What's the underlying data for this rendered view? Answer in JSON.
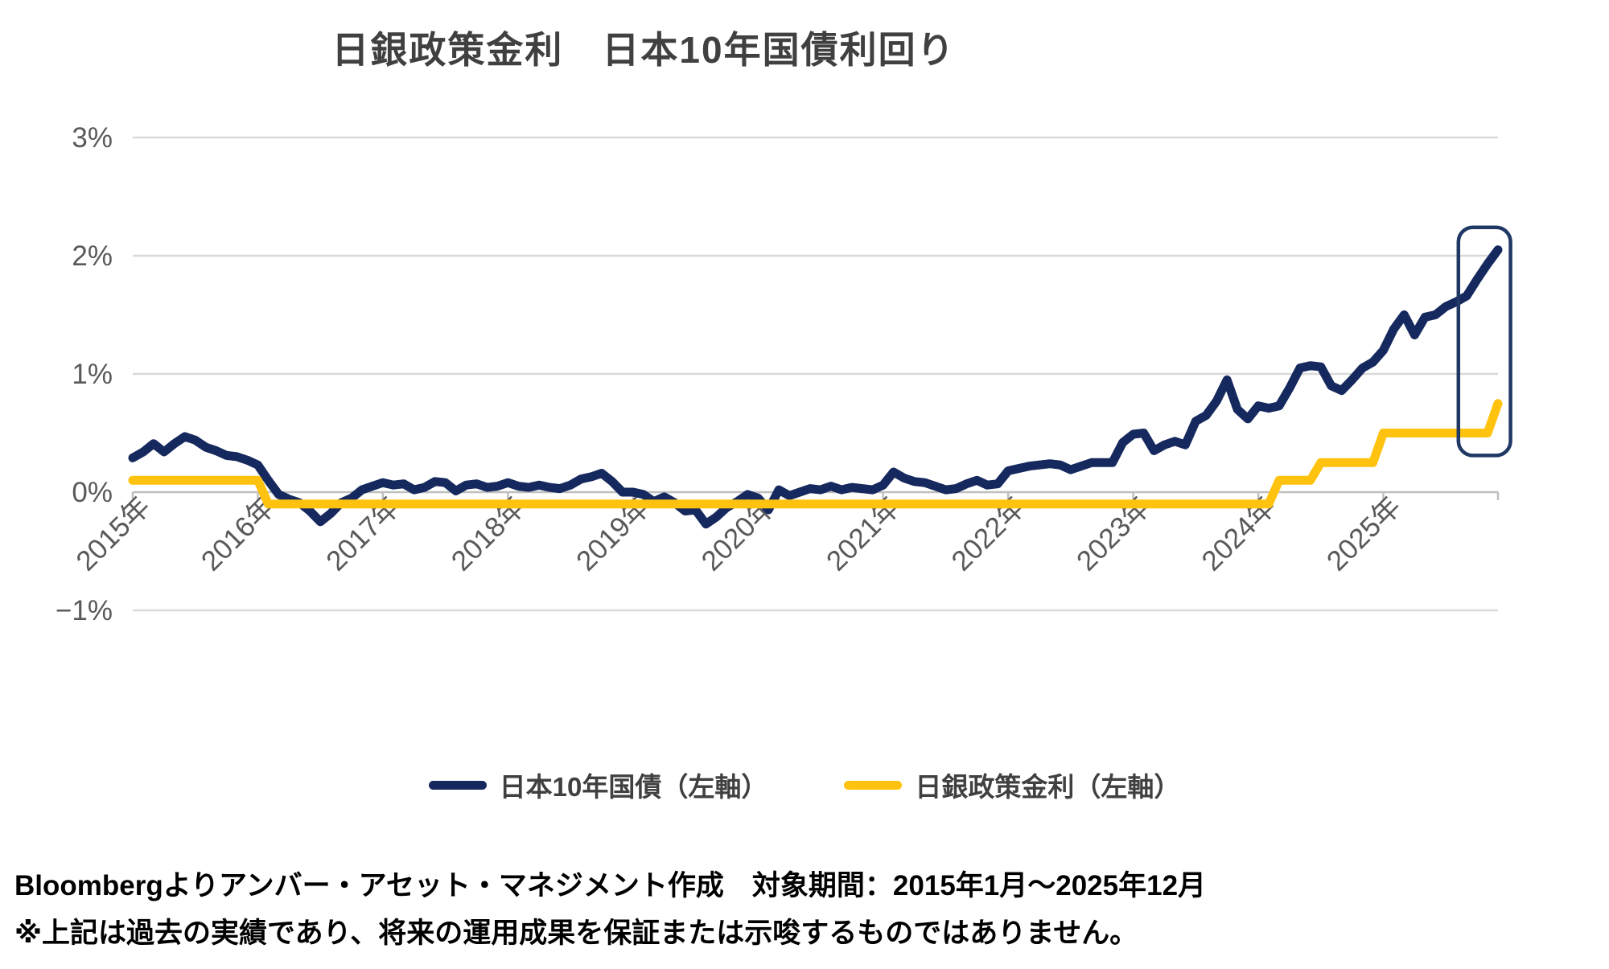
{
  "chart_data": {
    "type": "line",
    "title": "日銀政策金利　日本10年国債利回り",
    "x_start": "2015-01",
    "x_end": "2025-12",
    "x_interval": "monthly",
    "grid": true,
    "legend_position": "bottom",
    "ylim": [
      -1,
      3
    ],
    "y_axis": {
      "ticks": [
        {
          "label": "3%",
          "value": 3
        },
        {
          "label": "2%",
          "value": 2
        },
        {
          "label": "1%",
          "value": 1
        },
        {
          "label": "0%",
          "value": 0
        },
        {
          "label": "−1%",
          "value": -1
        }
      ]
    },
    "x_axis": {
      "year_labels": [
        "2015年",
        "2016年",
        "2017年",
        "2018年",
        "2019年",
        "2020年",
        "2021年",
        "2022年",
        "2023年",
        "2024年",
        "2025年"
      ]
    },
    "series": [
      {
        "name": "日本10年国債（左軸）",
        "color": "#16295E",
        "values": [
          0.29,
          0.34,
          0.41,
          0.34,
          0.41,
          0.47,
          0.44,
          0.38,
          0.35,
          0.31,
          0.3,
          0.27,
          0.23,
          0.1,
          -0.02,
          -0.06,
          -0.09,
          -0.16,
          -0.25,
          -0.18,
          -0.09,
          -0.05,
          0.02,
          0.05,
          0.08,
          0.06,
          0.07,
          0.02,
          0.04,
          0.09,
          0.08,
          0.01,
          0.06,
          0.07,
          0.04,
          0.05,
          0.08,
          0.05,
          0.04,
          0.06,
          0.04,
          0.03,
          0.06,
          0.11,
          0.13,
          0.16,
          0.09,
          0.0,
          0.0,
          -0.02,
          -0.08,
          -0.04,
          -0.09,
          -0.16,
          -0.15,
          -0.27,
          -0.21,
          -0.13,
          -0.08,
          -0.02,
          -0.05,
          -0.15,
          0.02,
          -0.03,
          0.0,
          0.03,
          0.02,
          0.05,
          0.02,
          0.04,
          0.03,
          0.02,
          0.06,
          0.17,
          0.12,
          0.09,
          0.08,
          0.05,
          0.02,
          0.03,
          0.07,
          0.1,
          0.06,
          0.07,
          0.18,
          0.2,
          0.22,
          0.23,
          0.24,
          0.23,
          0.19,
          0.22,
          0.25,
          0.25,
          0.25,
          0.42,
          0.49,
          0.5,
          0.35,
          0.4,
          0.43,
          0.4,
          0.6,
          0.65,
          0.77,
          0.95,
          0.7,
          0.62,
          0.73,
          0.71,
          0.73,
          0.88,
          1.05,
          1.07,
          1.06,
          0.9,
          0.86,
          0.95,
          1.05,
          1.1,
          1.2,
          1.38,
          1.5,
          1.33,
          1.48,
          1.5,
          1.57,
          1.61,
          1.66,
          1.8,
          1.93,
          2.05
        ]
      },
      {
        "name": "日銀政策金利（左軸）",
        "color": "#FFC20E",
        "values_rle": [
          [
            13,
            0.1
          ],
          [
            97,
            -0.1
          ],
          [
            4,
            0.1
          ],
          [
            6,
            0.25
          ],
          [
            11,
            0.5
          ],
          [
            1,
            0.75
          ]
        ]
      }
    ],
    "annotation_box": {
      "shape": "rounded-rect",
      "x0_month_index": 127.2,
      "x1_month_index": 132.2,
      "y0_value": 0.31,
      "y1_value": 2.24,
      "color": "#203864"
    }
  },
  "legend": {
    "items": [
      {
        "label": "日本10年国債（左軸）",
        "color": "#16295E"
      },
      {
        "label": "日銀政策金利（左軸）",
        "color": "#FFC20E"
      }
    ]
  },
  "footer": {
    "line1": "Bloombergよりアンバー・アセット・マネジメント作成　対象期間：2015年1月～2025年12月",
    "line2": "※上記は過去の実績であり、将来の運用成果を保証または示唆するものではありません。"
  }
}
